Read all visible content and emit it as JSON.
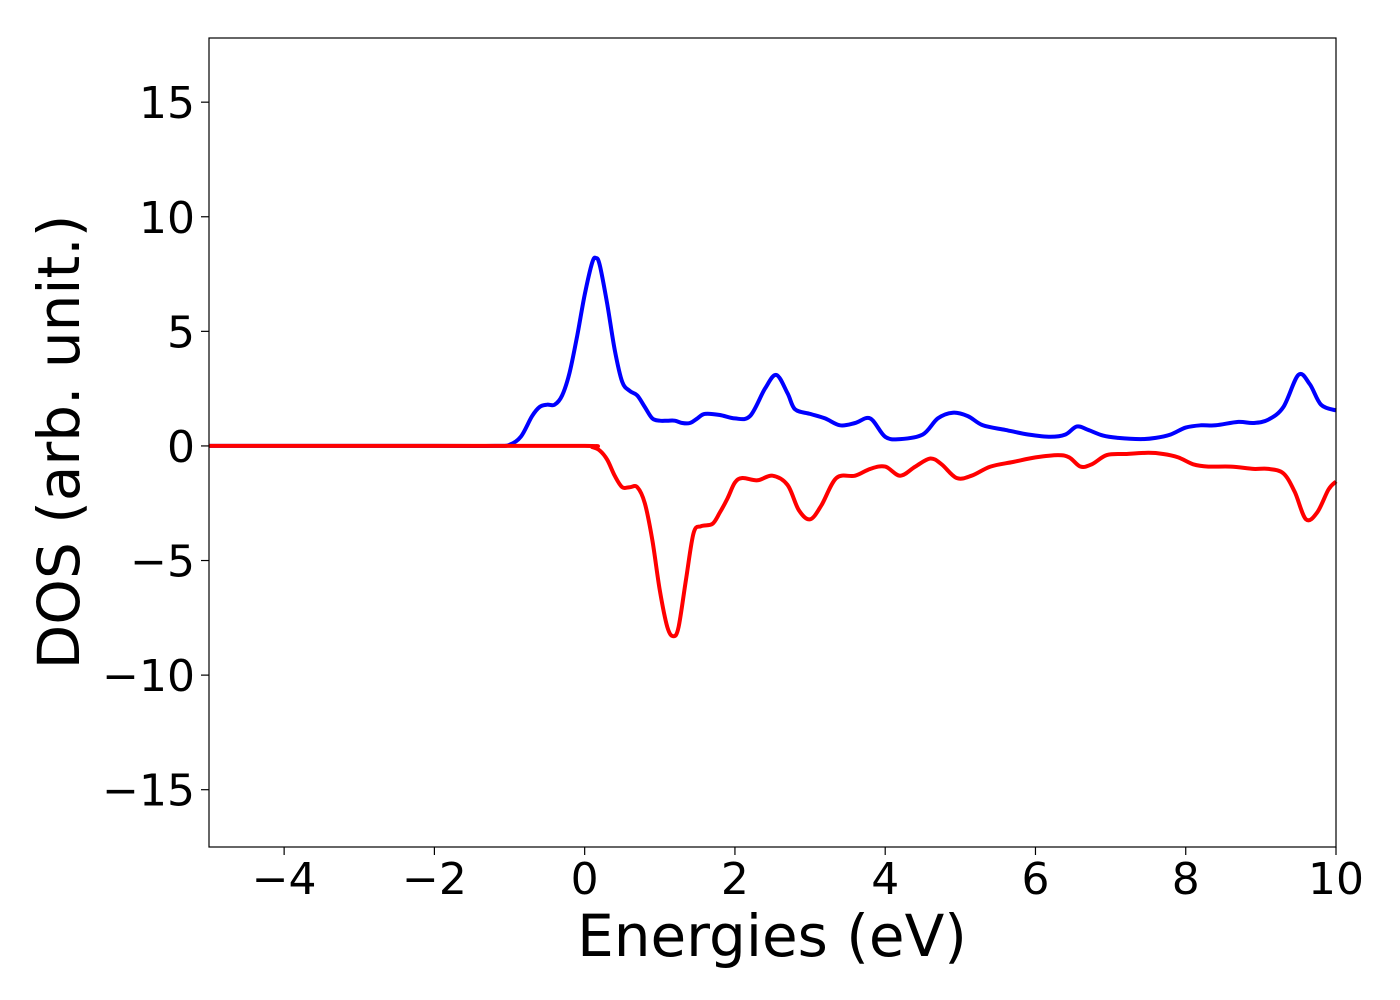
{
  "chart_data": {
    "type": "line",
    "title": "",
    "xlabel": "Energies (eV)",
    "ylabel": "DOS (arb. unit.)",
    "xlim": [
      -5,
      10
    ],
    "ylim": [
      -17.5,
      17.8
    ],
    "xticks": [
      -4,
      -2,
      0,
      2,
      4,
      6,
      8,
      10
    ],
    "xtick_labels": [
      "−4",
      "−2",
      "0",
      "2",
      "4",
      "6",
      "8",
      "10"
    ],
    "yticks": [
      15,
      10,
      5,
      0,
      -5,
      -10,
      -15
    ],
    "ytick_labels": [
      "15",
      "10",
      "5",
      "0",
      "−5",
      "−10",
      "−15"
    ],
    "grid": false,
    "series": [
      {
        "color": "#0000ff",
        "x": [
          -5,
          -2,
          -1.2,
          -1.0,
          -0.85,
          -0.7,
          -0.6,
          -0.5,
          -0.4,
          -0.3,
          -0.2,
          -0.1,
          0.0,
          0.1,
          0.15,
          0.2,
          0.3,
          0.4,
          0.5,
          0.6,
          0.7,
          0.8,
          0.9,
          1.0,
          1.1,
          1.2,
          1.3,
          1.4,
          1.5,
          1.6,
          1.8,
          2.0,
          2.2,
          2.4,
          2.55,
          2.7,
          2.8,
          3.0,
          3.2,
          3.4,
          3.6,
          3.8,
          4.0,
          4.2,
          4.5,
          4.7,
          4.9,
          5.1,
          5.3,
          5.6,
          5.9,
          6.2,
          6.4,
          6.55,
          6.7,
          6.9,
          7.1,
          7.4,
          7.6,
          7.8,
          8.0,
          8.2,
          8.4,
          8.7,
          8.9,
          9.1,
          9.3,
          9.5,
          9.65,
          9.8,
          10.0
        ],
        "values": [
          0,
          0,
          0,
          0.05,
          0.4,
          1.3,
          1.7,
          1.8,
          1.8,
          2.2,
          3.2,
          4.8,
          6.6,
          8.0,
          8.2,
          7.9,
          6.2,
          4.2,
          2.8,
          2.4,
          2.2,
          1.7,
          1.2,
          1.1,
          1.1,
          1.1,
          1.0,
          1.0,
          1.2,
          1.4,
          1.35,
          1.2,
          1.3,
          2.5,
          3.1,
          2.3,
          1.6,
          1.4,
          1.2,
          0.9,
          1.0,
          1.2,
          0.4,
          0.3,
          0.5,
          1.2,
          1.45,
          1.3,
          0.9,
          0.7,
          0.5,
          0.4,
          0.5,
          0.85,
          0.7,
          0.45,
          0.35,
          0.3,
          0.35,
          0.5,
          0.8,
          0.9,
          0.9,
          1.05,
          1.0,
          1.15,
          1.7,
          3.1,
          2.7,
          1.8,
          1.55
        ]
      },
      {
        "color": "#ff0000",
        "x": [
          -5,
          -2,
          0.0,
          0.1,
          0.2,
          0.3,
          0.4,
          0.5,
          0.6,
          0.7,
          0.8,
          0.9,
          1.0,
          1.1,
          1.18,
          1.25,
          1.35,
          1.45,
          1.55,
          1.7,
          1.8,
          1.9,
          2.0,
          2.1,
          2.3,
          2.5,
          2.7,
          2.85,
          3.0,
          3.15,
          3.35,
          3.6,
          3.8,
          4.0,
          4.2,
          4.4,
          4.6,
          4.75,
          4.95,
          5.15,
          5.4,
          5.7,
          6.0,
          6.3,
          6.45,
          6.6,
          6.75,
          6.95,
          7.2,
          7.5,
          7.7,
          7.9,
          8.1,
          8.3,
          8.6,
          8.9,
          9.1,
          9.3,
          9.45,
          9.6,
          9.75,
          9.9,
          10.0
        ],
        "values": [
          0,
          0,
          0,
          -0.05,
          -0.2,
          -0.6,
          -1.3,
          -1.8,
          -1.8,
          -1.8,
          -2.5,
          -4.1,
          -6.3,
          -7.9,
          -8.3,
          -7.9,
          -5.8,
          -3.8,
          -3.5,
          -3.4,
          -2.9,
          -2.3,
          -1.6,
          -1.4,
          -1.5,
          -1.3,
          -1.7,
          -2.8,
          -3.2,
          -2.6,
          -1.4,
          -1.3,
          -1.0,
          -0.9,
          -1.3,
          -0.9,
          -0.55,
          -0.8,
          -1.4,
          -1.3,
          -0.9,
          -0.7,
          -0.5,
          -0.4,
          -0.5,
          -0.9,
          -0.8,
          -0.4,
          -0.35,
          -0.3,
          -0.35,
          -0.5,
          -0.8,
          -0.9,
          -0.9,
          -1.0,
          -1.0,
          -1.2,
          -2.0,
          -3.2,
          -2.9,
          -1.9,
          -1.55
        ]
      }
    ]
  }
}
